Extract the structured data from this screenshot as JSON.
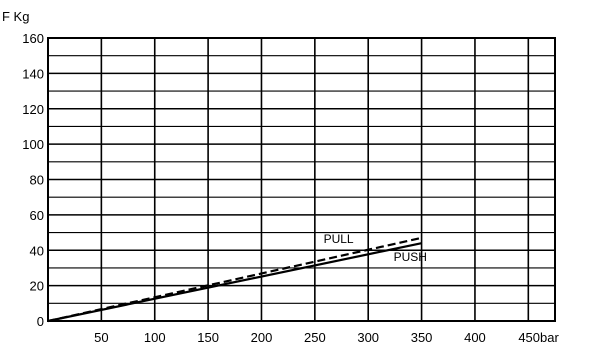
{
  "chart_data": {
    "type": "line",
    "ylabel": "F Kg",
    "xunit": "bar",
    "xlim": [
      0,
      475
    ],
    "ylim": [
      0,
      160
    ],
    "x_ticks": [
      50,
      100,
      150,
      200,
      250,
      300,
      350,
      400,
      450
    ],
    "y_ticks": [
      0,
      20,
      40,
      60,
      80,
      100,
      120,
      140,
      160
    ],
    "grid": true,
    "series": [
      {
        "name": "PULL",
        "style": "dashed",
        "color": "#000000",
        "x": [
          0,
          350
        ],
        "y": [
          0,
          47
        ]
      },
      {
        "name": "PUSH",
        "style": "solid",
        "color": "#000000",
        "x": [
          0,
          350
        ],
        "y": [
          0,
          44
        ]
      }
    ]
  }
}
